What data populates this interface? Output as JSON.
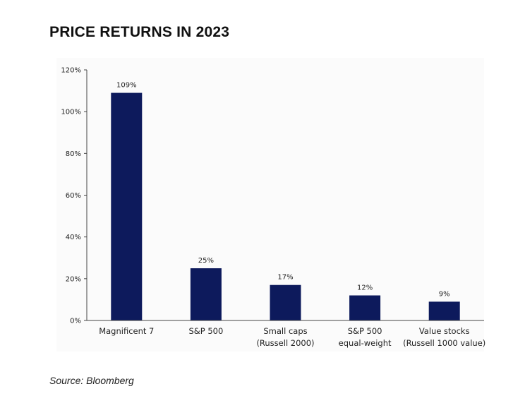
{
  "page": {
    "title": "PRICE RETURNS IN 2023",
    "source": "Source: Bloomberg"
  },
  "colors": {
    "bar": "#0d1a5c",
    "axis": "#444444",
    "text": "#222222"
  },
  "chart_data": {
    "type": "bar",
    "title": "PRICE RETURNS IN 2023",
    "xlabel": "",
    "ylabel": "",
    "ylim": [
      0,
      120
    ],
    "yticks": [
      "0%",
      "20%",
      "40%",
      "60%",
      "80%",
      "100%",
      "120%"
    ],
    "ytick_values": [
      0,
      20,
      40,
      60,
      80,
      100,
      120
    ],
    "categories": [
      [
        "Magnificent 7"
      ],
      [
        "S&P 500"
      ],
      [
        "Small caps",
        "(Russell 2000)"
      ],
      [
        "S&P 500",
        "equal-weight"
      ],
      [
        "Value stocks",
        "(Russell 1000 value)"
      ]
    ],
    "values": [
      109,
      25,
      17,
      12,
      9
    ],
    "data_labels": [
      "109%",
      "25%",
      "17%",
      "12%",
      "9%"
    ],
    "grid": false,
    "legend": "none"
  }
}
